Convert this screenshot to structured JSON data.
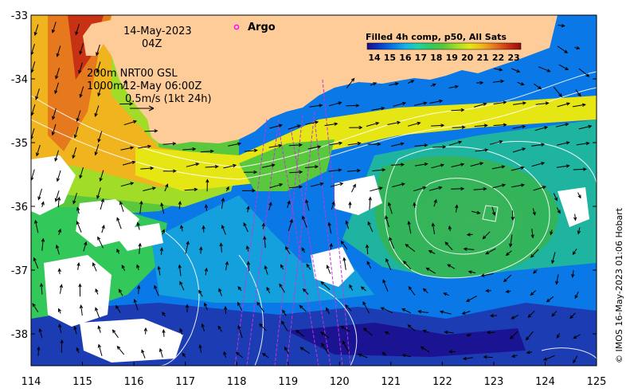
{
  "map": {
    "lon_range": [
      114,
      125
    ],
    "lat_range": [
      -38.5,
      -33
    ],
    "lon_ticks": [
      "114",
      "115",
      "116",
      "117",
      "118",
      "119",
      "120",
      "121",
      "122",
      "123",
      "124",
      "125"
    ],
    "lat_ticks": [
      "-33",
      "-34",
      "-35",
      "-36",
      "-37",
      "-38"
    ],
    "land_color": "#fdcc99",
    "palette": [
      "#1c0a8a",
      "#0a3cc8",
      "#0a78e6",
      "#14b4e6",
      "#1ed2aa",
      "#32c85a",
      "#5ac83c",
      "#a0dc28",
      "#e6e614",
      "#f0b41e",
      "#e6781e",
      "#c83214",
      "#960a0a"
    ]
  },
  "annotations": {
    "date": "14-May-2023",
    "hour": "04Z",
    "line1": "200m  NRT00 GSL",
    "line2": "1000m12-May 06:00Z",
    "line3": "0.5m/s (1kt 24h)"
  },
  "argo": {
    "label": "Argo",
    "marker_color": "#ff00ff"
  },
  "colorbar": {
    "title": "Filled 4h comp, p50, All Sats",
    "ticks": [
      "14",
      "15",
      "16",
      "17",
      "18",
      "19",
      "20",
      "21",
      "22",
      "23"
    ]
  },
  "credit": "© IMOS 16-May-2023 01:06 Hobart"
}
